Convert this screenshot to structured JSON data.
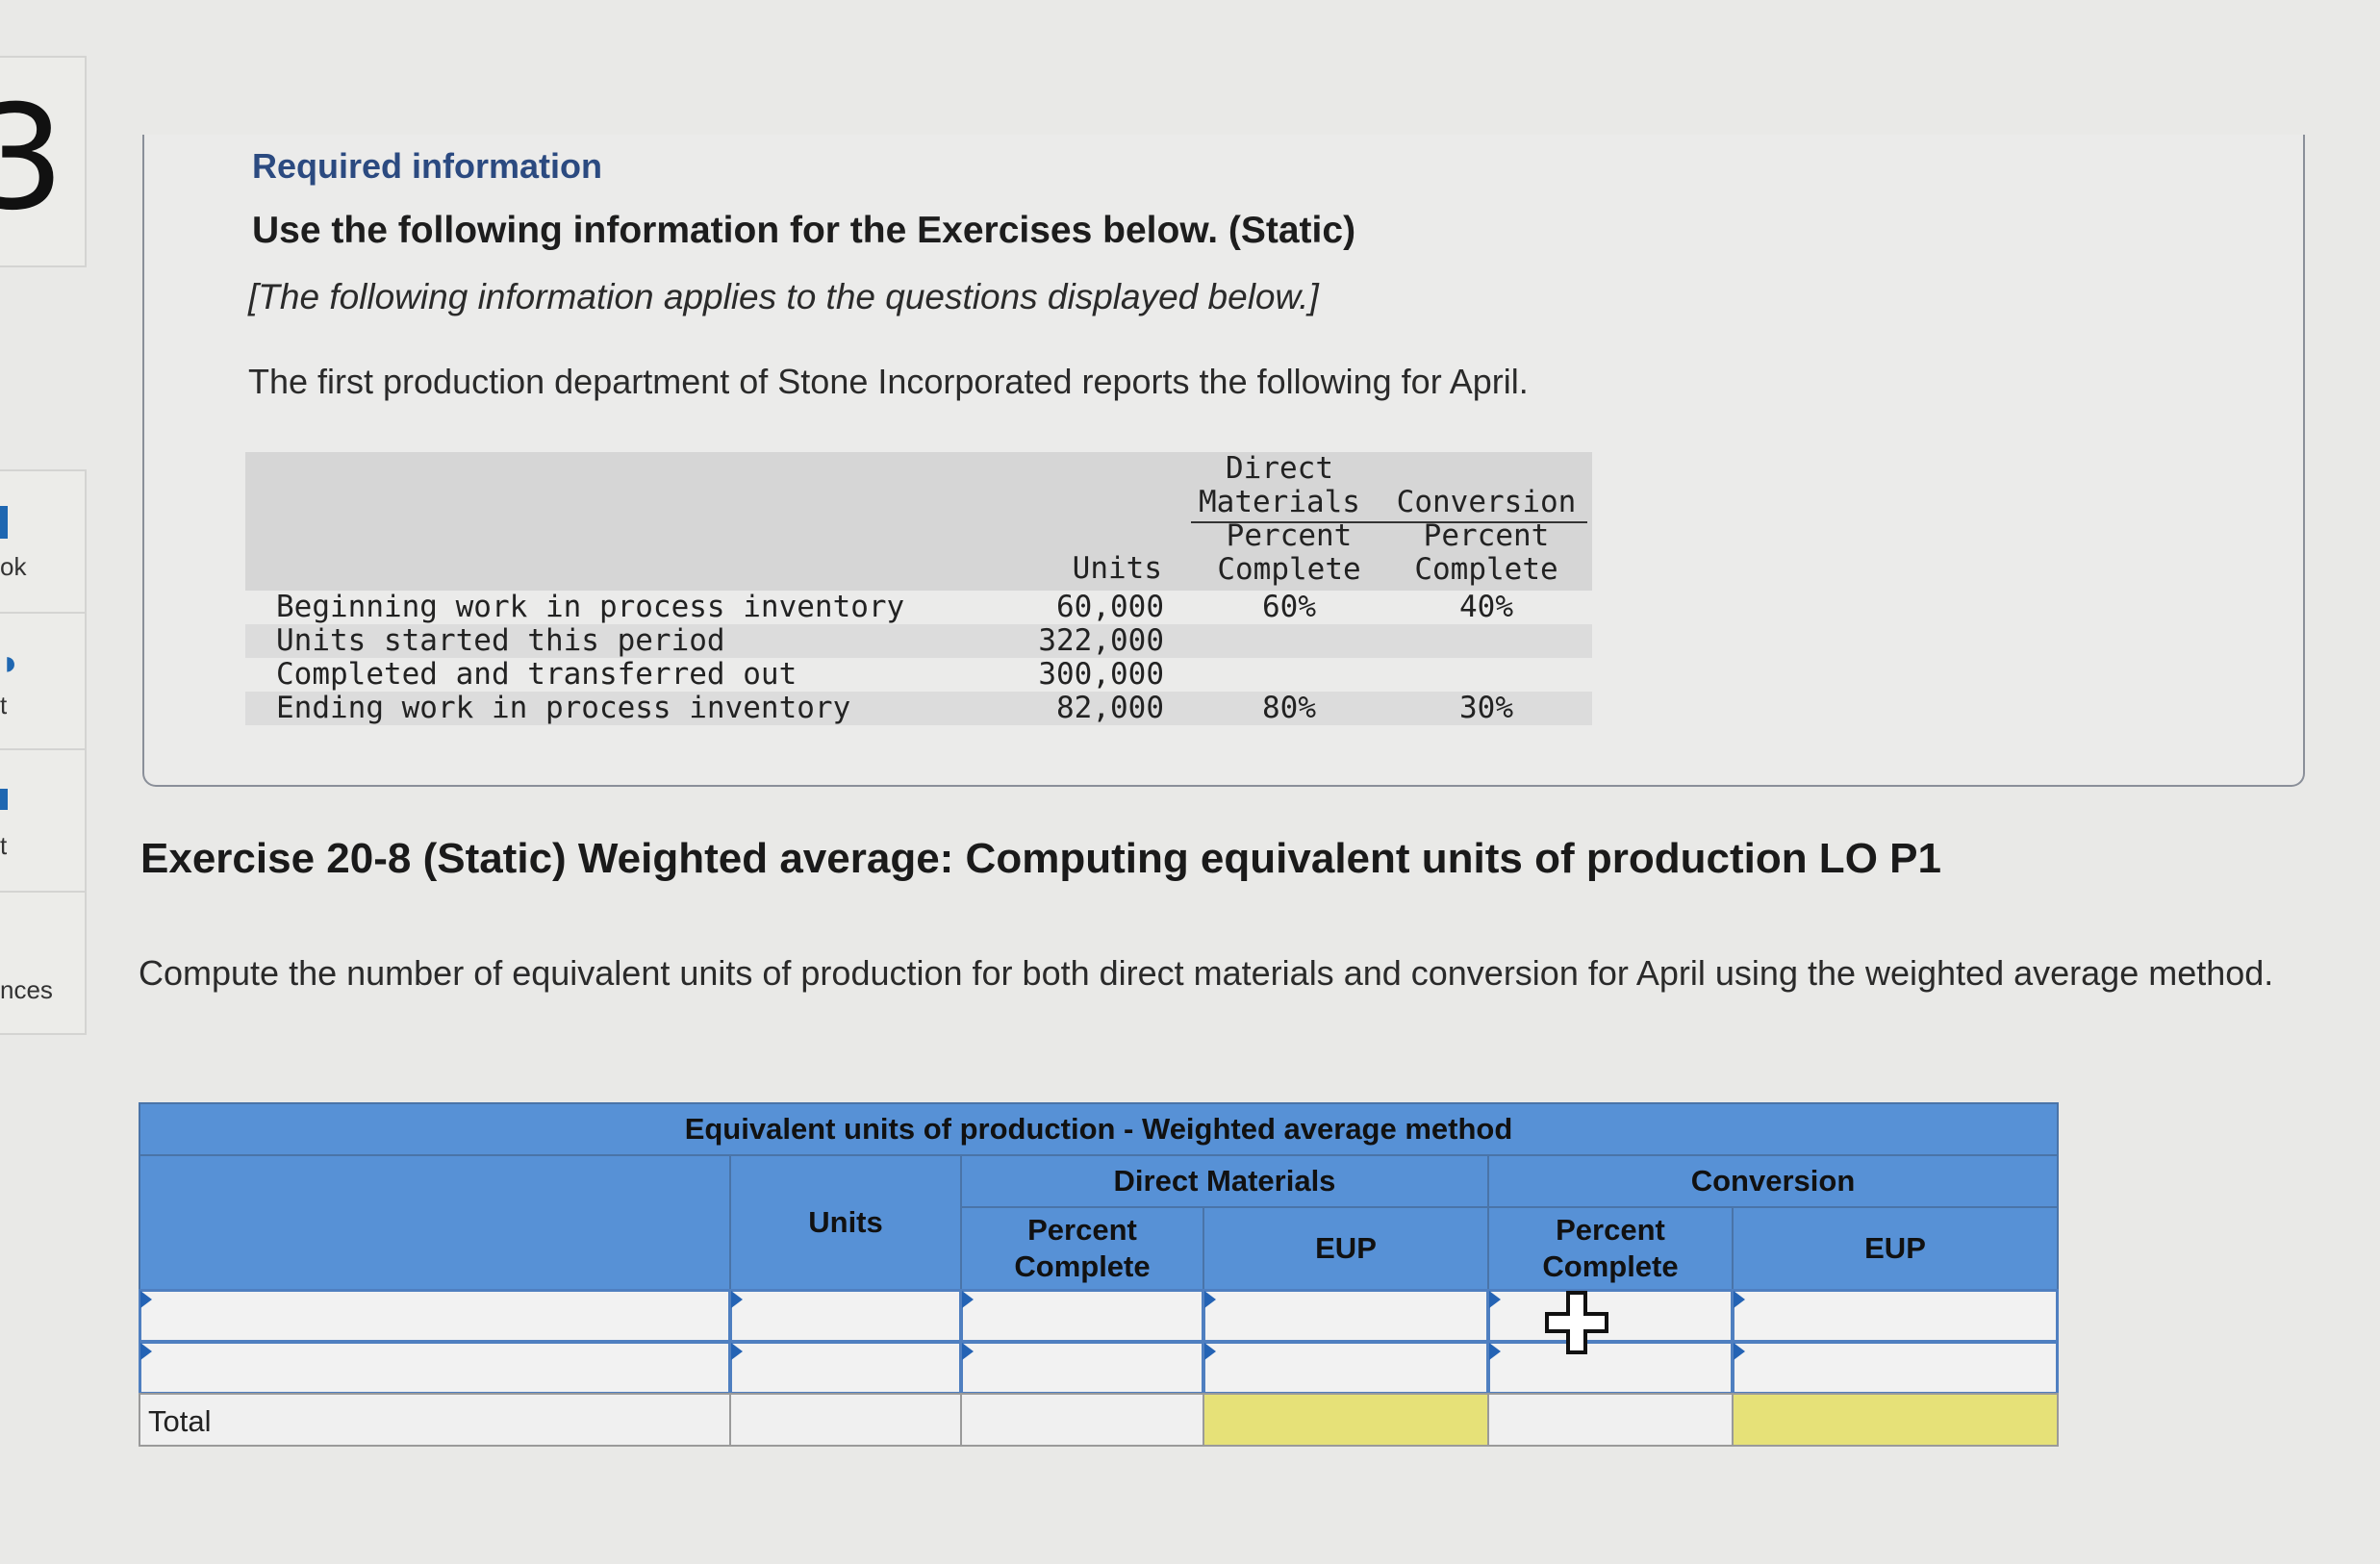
{
  "sidebar": {
    "number": "3",
    "items": [
      {
        "label": "ok"
      },
      {
        "label": "t"
      },
      {
        "label": "t"
      },
      {
        "label": "nces"
      }
    ]
  },
  "info": {
    "required_title": "Required information",
    "use_title": "Use the following information for the Exercises below. (Static)",
    "applies_text": "[The following information applies to the questions displayed below.]",
    "intro_text": "The first production department of Stone Incorporated reports the following for April."
  },
  "data_table": {
    "headers": {
      "units": "Units",
      "direct_materials": "Direct\nMaterials",
      "conversion": "Conversion",
      "dm_percent": "Percent\nComplete",
      "conv_percent": "Percent\nComplete"
    },
    "rows": [
      {
        "label": "Beginning work in process inventory",
        "units": "60,000",
        "dm": "60%",
        "conv": "40%"
      },
      {
        "label": "Units started this period",
        "units": "322,000",
        "dm": "",
        "conv": ""
      },
      {
        "label": "Completed and transferred out",
        "units": "300,000",
        "dm": "",
        "conv": ""
      },
      {
        "label": "Ending work in process inventory",
        "units": "82,000",
        "dm": "80%",
        "conv": "30%"
      }
    ]
  },
  "exercise": {
    "title": "Exercise 20-8 (Static) Weighted average: Computing equivalent units of production LO P1",
    "instructions": "Compute the number of equivalent units of production for both direct materials and conversion for April using the weighted average method."
  },
  "worksheet": {
    "title": "Equivalent units of production - Weighted average method",
    "units_header": "Units",
    "direct_materials_header": "Direct Materials",
    "conversion_header": "Conversion",
    "dm_percent_header": "Percent\nComplete",
    "dm_eup_header": "EUP",
    "conv_percent_header": "Percent\nComplete",
    "conv_eup_header": "EUP",
    "total_label": "Total",
    "rows": [
      {
        "label": "",
        "units": "",
        "dm_percent": "",
        "dm_eup": "",
        "conv_percent": "",
        "conv_eup": ""
      },
      {
        "label": "",
        "units": "",
        "dm_percent": "",
        "dm_eup": "",
        "conv_percent": "",
        "conv_eup": ""
      }
    ]
  },
  "colors": {
    "header_blue": "#5791d6",
    "total_highlight": "#e6e178",
    "title_blue": "#2b4a80"
  }
}
